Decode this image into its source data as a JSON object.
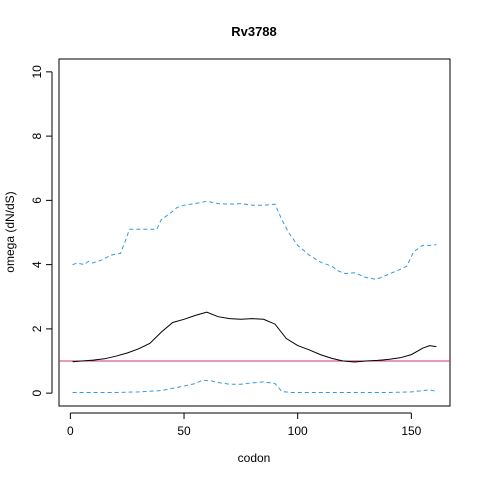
{
  "chart_data": {
    "type": "line",
    "title": "Rv3788",
    "xlabel": "codon",
    "ylabel": "omega (dN/dS)",
    "xlim": [
      -5,
      167
    ],
    "ylim": [
      -0.4,
      10.4
    ],
    "x_ticks": [
      0,
      50,
      100,
      150
    ],
    "y_ticks": [
      0,
      2,
      4,
      6,
      8,
      10
    ],
    "grid": false,
    "reference_line": {
      "y": 1,
      "color": "#cc3377"
    },
    "series": [
      {
        "role": "estimate",
        "color": "#000000",
        "style": "solid",
        "x": [
          1,
          5,
          10,
          15,
          20,
          25,
          30,
          35,
          40,
          45,
          50,
          55,
          60,
          65,
          70,
          75,
          80,
          85,
          90,
          95,
          100,
          105,
          110,
          115,
          120,
          125,
          130,
          135,
          140,
          145,
          150,
          155,
          158,
          161
        ],
        "y": [
          0.98,
          1.0,
          1.03,
          1.07,
          1.15,
          1.25,
          1.38,
          1.55,
          1.9,
          2.2,
          2.3,
          2.42,
          2.52,
          2.38,
          2.32,
          2.3,
          2.32,
          2.3,
          2.15,
          1.7,
          1.48,
          1.35,
          1.2,
          1.08,
          1.0,
          0.97,
          1.0,
          1.02,
          1.05,
          1.1,
          1.2,
          1.4,
          1.48,
          1.45
        ]
      },
      {
        "role": "upper bound",
        "color": "#3399dd",
        "style": "dashed",
        "x": [
          1,
          3,
          6,
          8,
          10,
          14,
          18,
          22,
          24,
          26,
          30,
          34,
          38,
          40,
          44,
          47,
          50,
          55,
          60,
          65,
          70,
          75,
          80,
          85,
          90,
          93,
          96,
          100,
          105,
          110,
          115,
          118,
          121,
          125,
          130,
          134,
          136,
          140,
          145,
          148,
          151,
          155,
          158,
          161
        ],
        "y": [
          4.0,
          4.05,
          4.0,
          4.1,
          4.05,
          4.15,
          4.3,
          4.35,
          4.7,
          5.1,
          5.1,
          5.1,
          5.1,
          5.4,
          5.6,
          5.78,
          5.85,
          5.9,
          5.97,
          5.9,
          5.88,
          5.9,
          5.85,
          5.85,
          5.88,
          5.4,
          5.0,
          4.6,
          4.3,
          4.08,
          3.95,
          3.8,
          3.72,
          3.75,
          3.6,
          3.55,
          3.58,
          3.7,
          3.85,
          3.95,
          4.4,
          4.6,
          4.6,
          4.62
        ]
      },
      {
        "role": "lower bound",
        "color": "#3399dd",
        "style": "dashed",
        "x": [
          1,
          10,
          20,
          30,
          40,
          45,
          50,
          55,
          58,
          62,
          66,
          70,
          75,
          80,
          85,
          90,
          93,
          97,
          100,
          110,
          120,
          130,
          140,
          150,
          155,
          158,
          161
        ],
        "y": [
          0.02,
          0.02,
          0.02,
          0.04,
          0.08,
          0.15,
          0.22,
          0.3,
          0.4,
          0.38,
          0.32,
          0.28,
          0.28,
          0.32,
          0.35,
          0.3,
          0.05,
          0.02,
          0.02,
          0.02,
          0.02,
          0.02,
          0.02,
          0.04,
          0.08,
          0.1,
          0.05
        ]
      }
    ]
  }
}
